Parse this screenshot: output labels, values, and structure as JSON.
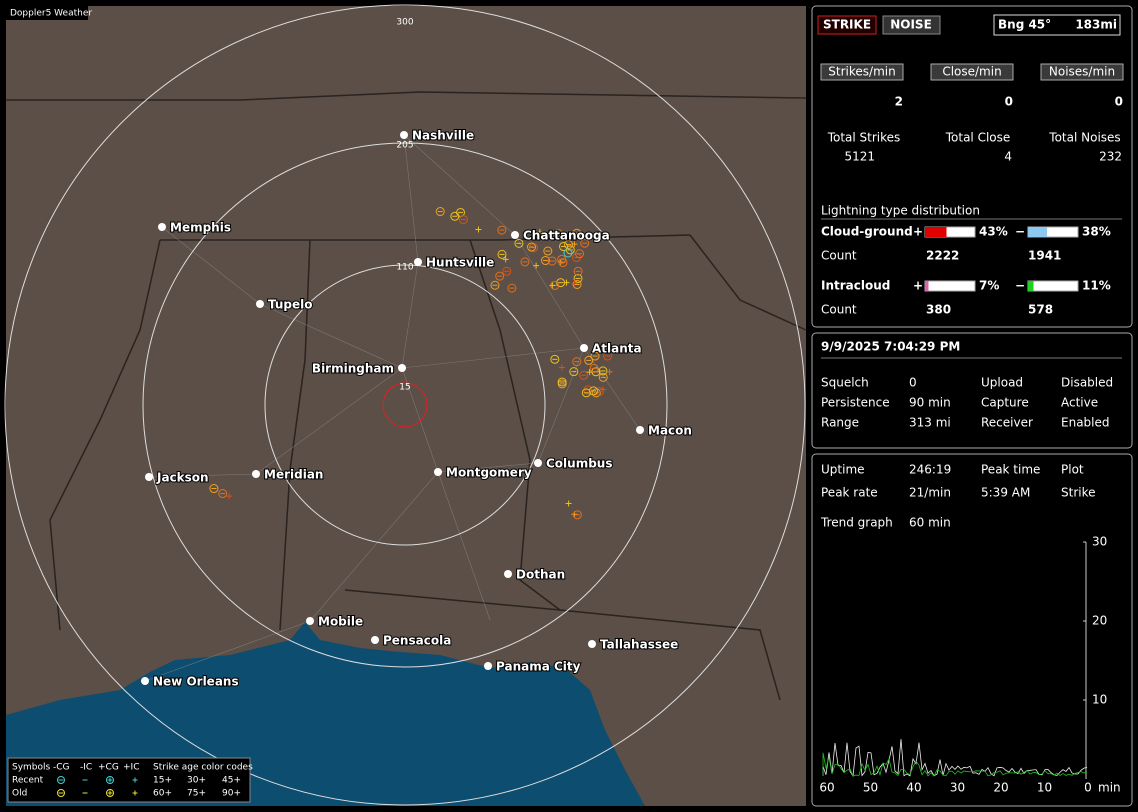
{
  "app": "Doppler5 Weather",
  "map": {
    "ring_labels": [
      "300",
      "205",
      "110",
      "15"
    ],
    "cities": [
      "Nashville",
      "Memphis",
      "Chattanooga",
      "Huntsville",
      "Tupelo",
      "Birmingham",
      "Atlanta",
      "Macon",
      "Jackson",
      "Meridian",
      "Montgomery",
      "Columbus",
      "Dothan",
      "Mobile",
      "Pensacola",
      "Panama City",
      "Tallahassee",
      "New Orleans"
    ]
  },
  "legend": {
    "symbols": "Symbols",
    "types": [
      "-CG",
      "-IC",
      "+CG",
      "+IC"
    ],
    "age_title": "Strike age color codes",
    "recent": "Recent",
    "old": "Old",
    "recent_ages": [
      "15+",
      "30+",
      "45+"
    ],
    "old_ages": [
      "60+",
      "75+",
      "90+"
    ]
  },
  "status": {
    "buttons": [
      "STRIKE",
      "NOISE"
    ],
    "bearing": "Bng 45°",
    "distance": "183mi"
  },
  "rates": [
    {
      "label": "Strikes/min",
      "value": 2
    },
    {
      "label": "Close/min",
      "value": 0
    },
    {
      "label": "Noises/min",
      "value": 0
    }
  ],
  "totals": [
    {
      "label": "Total Strikes",
      "value": 5121
    },
    {
      "label": "Total Close",
      "value": 4
    },
    {
      "label": "Total Noises",
      "value": 232
    }
  ],
  "distribution": {
    "title": "Lightning type distribution",
    "rows": [
      {
        "name": "Cloud-ground",
        "pos_sign": "+",
        "pos_pct": 43,
        "pos_pct_label": "43%",
        "neg_sign": "−",
        "neg_pct": 38,
        "neg_pct_label": "38%",
        "count_label": "Count",
        "pos_count": 2222,
        "neg_count": 1941,
        "pos_color": "#e00000",
        "neg_color": "#8cc8f0"
      },
      {
        "name": "Intracloud",
        "pos_sign": "+",
        "pos_pct": 7,
        "pos_pct_label": "7%",
        "neg_sign": "−",
        "neg_pct": 11,
        "neg_pct_label": "11%",
        "count_label": "Count",
        "pos_count": 380,
        "neg_count": 578,
        "pos_color": "#e060b0",
        "neg_color": "#20d020"
      }
    ]
  },
  "clock": "9/9/2025 7:04:29 PM",
  "settings": [
    {
      "label": "Squelch",
      "value": "0"
    },
    {
      "label": "Upload",
      "value": "Disabled",
      "color": "#bbbbbb"
    },
    {
      "label": "Persistence",
      "value": "90 min"
    },
    {
      "label": "Capture",
      "value": "Active",
      "color": "#20e020"
    },
    {
      "label": "Range",
      "value": "313 mi"
    },
    {
      "label": "Receiver",
      "value": "Enabled",
      "color": "#20e020"
    }
  ],
  "stats": [
    {
      "label": "Uptime",
      "value": "246:19"
    },
    {
      "label": "Peak time",
      "value": "Plot"
    },
    {
      "label": "Peak rate",
      "value": "21/min"
    },
    {
      "label": "5:39 AM",
      "value": "Strike"
    },
    {
      "label": "Trend graph",
      "value": "60 min"
    }
  ],
  "trend": {
    "ylim": [
      0,
      30
    ],
    "yticks": [
      10,
      20,
      30
    ],
    "xlim": [
      60,
      0
    ],
    "xticks": [
      60,
      50,
      40,
      30,
      20,
      10,
      0
    ],
    "unit": "min"
  }
}
